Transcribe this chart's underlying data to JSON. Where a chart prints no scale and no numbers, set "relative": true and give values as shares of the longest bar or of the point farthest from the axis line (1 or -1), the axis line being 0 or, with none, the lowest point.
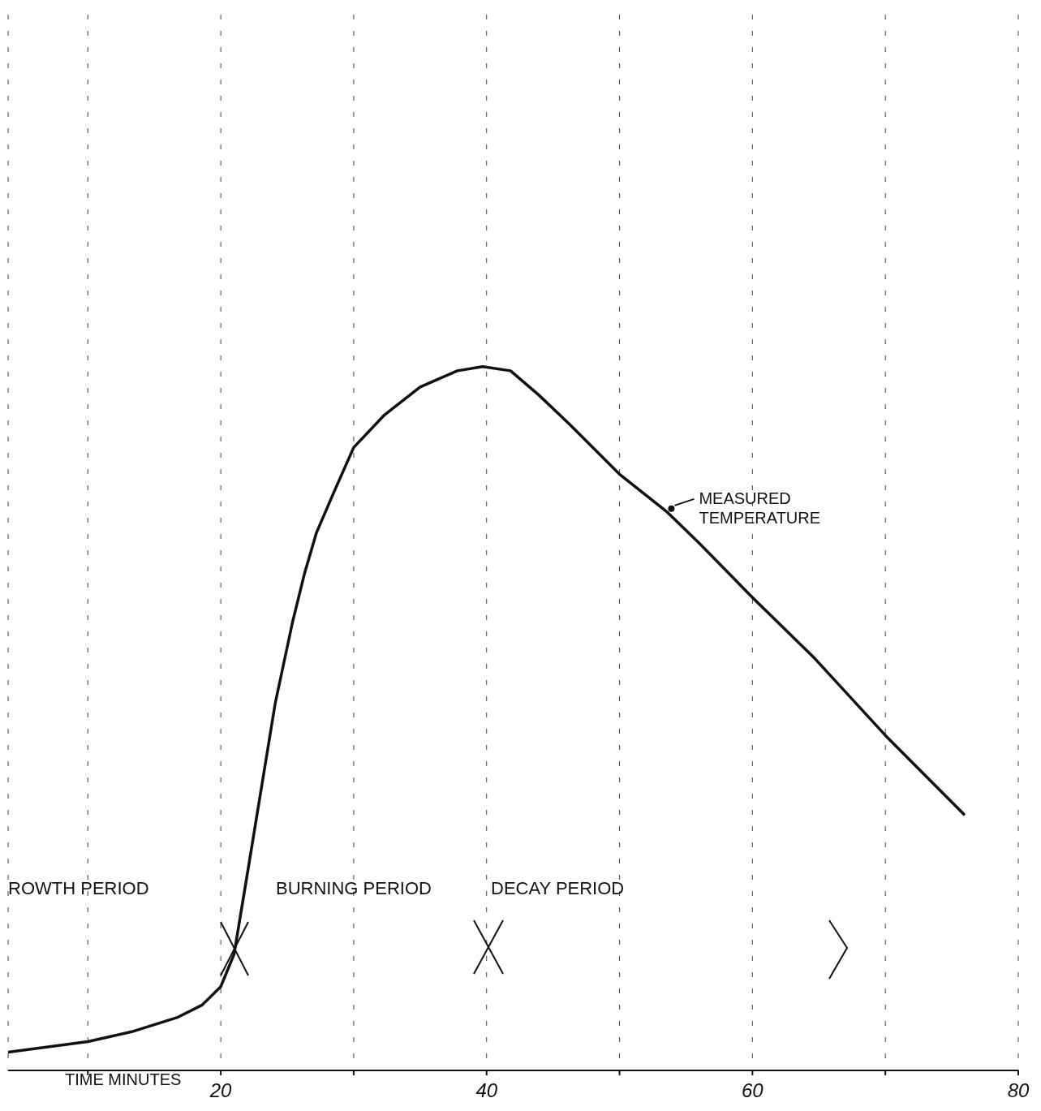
{
  "chart_data": {
    "type": "line",
    "relative": true,
    "xlabel": "TIME MINUTES",
    "xlim": [
      4,
      80
    ],
    "xticks": [
      {
        "value": 10,
        "label": null
      },
      20,
      {
        "value": 30,
        "label": null
      },
      40,
      {
        "value": 50,
        "label": null
      },
      60,
      {
        "value": 70,
        "label": null
      },
      80
    ],
    "x": [
      4,
      10,
      13.3,
      16.7,
      18.6,
      20,
      21,
      22.1,
      23.2,
      24.1,
      25.4,
      26.3,
      27.2,
      28.5,
      30,
      32.3,
      35,
      37.8,
      39.7,
      41.8,
      43.9,
      46.3,
      50,
      53.6,
      56.1,
      60,
      64.7,
      70,
      75.9
    ],
    "series": [
      {
        "color": "#111111",
        "values": [
          0.026,
          0.041,
          0.055,
          0.075,
          0.093,
          0.119,
          0.165,
          0.291,
          0.418,
          0.522,
          0.637,
          0.706,
          0.764,
          0.821,
          0.885,
          0.931,
          0.971,
          0.994,
          1,
          0.994,
          0.96,
          0.917,
          0.847,
          0.793,
          0.747,
          0.672,
          0.585,
          0.476,
          0.364
        ]
      }
    ],
    "grid": "x",
    "line_style": "solid",
    "marker": "none",
    "annotations": [
      {
        "text": "MEASURED TEMPERATURE",
        "x": 53.9,
        "y": 0.798
      },
      "ROWTH PERIOD",
      "BURNING PERIOD",
      "DECAY PERIOD"
    ]
  }
}
